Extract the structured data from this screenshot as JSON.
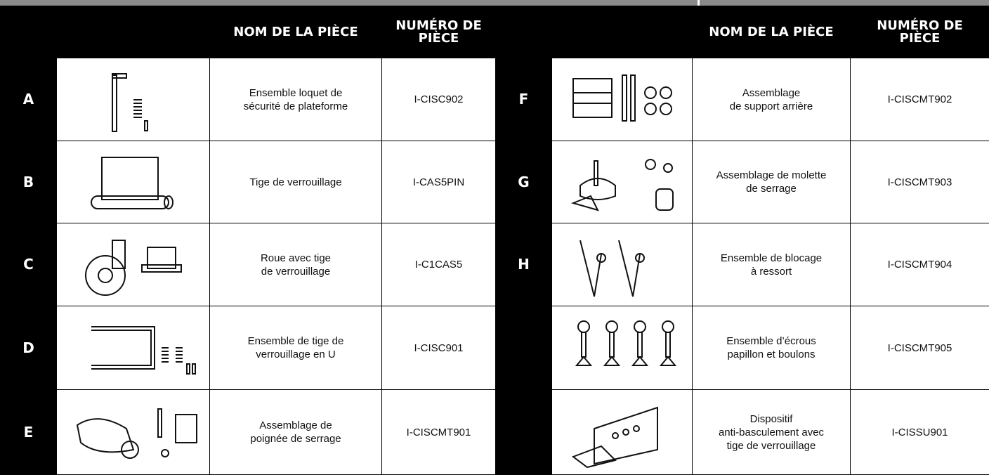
{
  "headers": {
    "name": "NOM DE LA PIÈCE",
    "number": [
      "NUMÉRO DE",
      "PIÈCE"
    ]
  },
  "rows": [
    {
      "left": {
        "letter": "A",
        "name": [
          "Ensemble loquet de",
          "sécurité de plateforme"
        ],
        "number": "I-CISC902"
      },
      "right": {
        "letter": "F",
        "name": [
          "Assemblage",
          "de support arrière"
        ],
        "number": "I-CISCMT902"
      }
    },
    {
      "left": {
        "letter": "B",
        "name": [
          "Tige de verrouillage"
        ],
        "number": "I-CAS5PIN"
      },
      "right": {
        "letter": "G",
        "name": [
          "Assemblage de molette",
          "de serrage"
        ],
        "number": "I-CISCMT903"
      }
    },
    {
      "left": {
        "letter": "C",
        "name": [
          "Roue avec tige",
          "de verrouillage"
        ],
        "number": "I-C1CAS5"
      },
      "right": {
        "letter": "H",
        "name": [
          "Ensemble de blocage",
          "à ressort"
        ],
        "number": "I-CISCMT904"
      }
    },
    {
      "left": {
        "letter": "D",
        "name": [
          "Ensemble de tige de",
          "verrouillage en U"
        ],
        "number": "I-CISC901"
      },
      "right": {
        "name": [
          "Ensemble d’écrous",
          "papillon et boulons"
        ],
        "number": "I-CISCMT905"
      }
    },
    {
      "left": {
        "letter": "E",
        "name": [
          "Assemblage de",
          "poignée de serrage"
        ],
        "number": "I-CISCMT901"
      },
      "right": {
        "name": [
          "Dispositif",
          "anti-basculement avec",
          "tige de verrouillage"
        ],
        "number": "I-CISSU901"
      }
    }
  ]
}
